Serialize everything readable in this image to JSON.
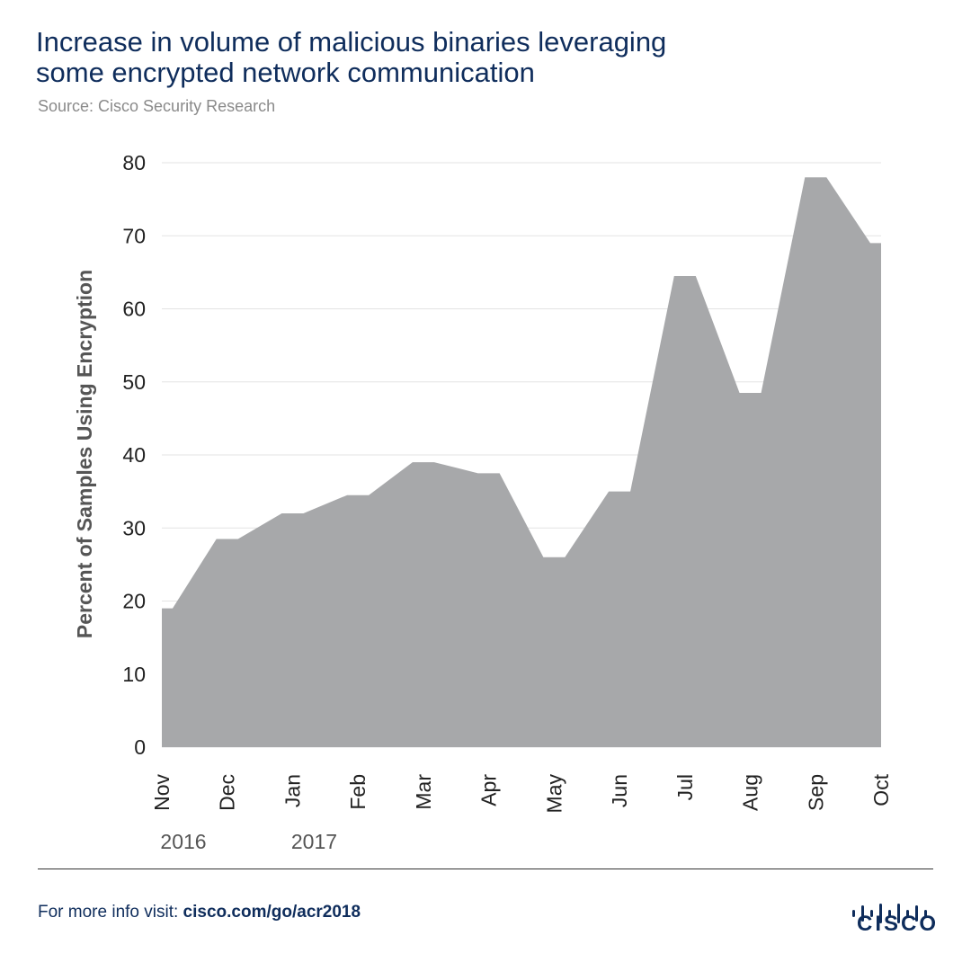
{
  "header": {
    "title_line1": "Increase in volume of malicious binaries leveraging",
    "title_line2": "some encrypted network communication",
    "source": "Source: Cisco Security Research"
  },
  "footer": {
    "prefix": "For more info visit: ",
    "link": "cisco.com/go/acr2018",
    "brand": "CISCO"
  },
  "colors": {
    "area_fill": "#a7a8aa",
    "title": "#0f2d5c",
    "grid": "#e3e3e3"
  },
  "chart_data": {
    "type": "area",
    "title": "Increase in volume of malicious binaries leveraging some encrypted network communication",
    "xlabel": "",
    "ylabel": "Percent of Samples Using Encryption",
    "categories": [
      "Nov",
      "Dec",
      "Jan",
      "Feb",
      "Mar",
      "Apr",
      "May",
      "Jun",
      "Jul",
      "Aug",
      "Sep",
      "Oct"
    ],
    "year_labels": [
      {
        "category": "Nov",
        "label": "2016"
      },
      {
        "category": "Jan",
        "label": "2017"
      }
    ],
    "values": [
      19,
      28.5,
      32,
      34.5,
      39,
      37.5,
      26,
      35,
      64.5,
      48.5,
      78,
      69
    ],
    "ylim": [
      0,
      80
    ],
    "yticks": [
      0,
      10,
      20,
      30,
      40,
      50,
      60,
      70,
      80
    ],
    "grid": true
  }
}
